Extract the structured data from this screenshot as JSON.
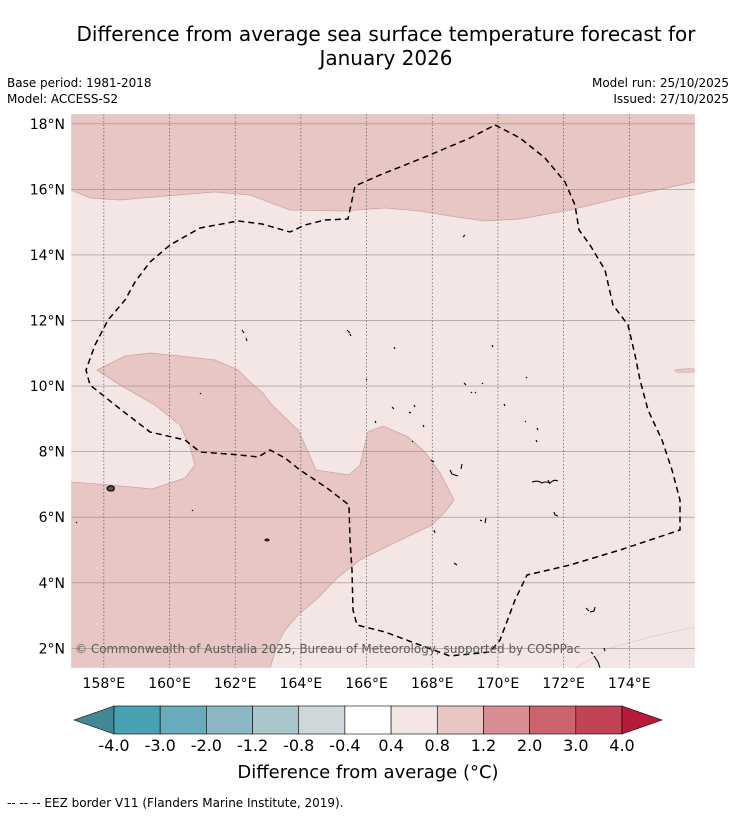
{
  "title_line1": "Difference from average sea surface temperature forecast for",
  "title_line2": "January 2026",
  "base_period": "Base period: 1981-2018",
  "model": "Model: ACCESS-S2",
  "model_run": "Model run: 25/10/2025",
  "issued": "Issued: 27/10/2025",
  "copyright": "© Commonwealth of Australia 2025, Bureau of Meteorology, supported by COSPPac",
  "colorbar_label": "Difference from average (°C)",
  "footer_note": "--  --  -- EEZ border V11 (Flanders Marine Institute, 2019).",
  "map": {
    "lat_ticks": [
      "18°N",
      "16°N",
      "14°N",
      "12°N",
      "10°N",
      "8°N",
      "6°N",
      "4°N",
      "2°N"
    ],
    "lon_ticks": [
      "158°E",
      "160°E",
      "162°E",
      "164°E",
      "166°E",
      "168°E",
      "170°E",
      "172°E",
      "174°E"
    ],
    "lat_values": [
      18,
      16,
      14,
      12,
      10,
      8,
      6,
      4,
      2
    ],
    "lon_values": [
      158,
      160,
      162,
      164,
      166,
      168,
      170,
      172,
      174
    ],
    "lon_range": [
      157,
      176
    ],
    "lat_range": [
      1.4,
      18.3
    ],
    "regions": [
      {
        "class": "0.8 to 1.2",
        "color": "#e8c6c3",
        "location": "north of ~15.5°N"
      },
      {
        "class": "0.8 to 1.2",
        "color": "#e8c6c3",
        "location": "southwest, west of ~168°E below ~10°N"
      },
      {
        "class": "0.4 to 0.8",
        "color": "#f4e6e5",
        "location": "remaining ocean"
      }
    ]
  },
  "colorbar": {
    "tick_labels": [
      "-4.0",
      "-3.0",
      "-2.0",
      "-1.2",
      "-0.8",
      "-0.4",
      "0.4",
      "0.8",
      "1.2",
      "2.0",
      "3.0",
      "4.0"
    ],
    "colors": [
      "#418a95",
      "#48a1b2",
      "#68abbd",
      "#8bb8c4",
      "#a8c6cb",
      "#ced8da",
      "#ffffff",
      "#f4e6e5",
      "#e8c6c3",
      "#d88c94",
      "#ca6570",
      "#c14356",
      "#b71b3b"
    ]
  }
}
